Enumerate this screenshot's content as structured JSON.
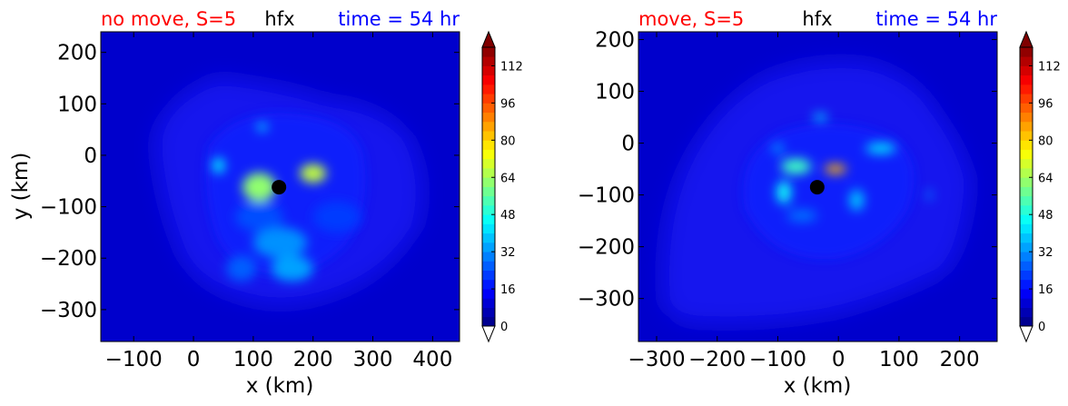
{
  "chart_data": [
    {
      "type": "heatmap",
      "panel": "left",
      "title_left": "no move, S=5",
      "title_center": "hfx",
      "title_right": "time = 54 hr",
      "title_left_color": "#ff0000",
      "title_center_color": "#000000",
      "title_right_color": "#0000ff",
      "xlabel": "x (km)",
      "ylabel": "y (km)",
      "xlim": [
        -155,
        445
      ],
      "ylim": [
        -362,
        240
      ],
      "xticks": [
        -100,
        0,
        100,
        200,
        300,
        400
      ],
      "xtick_labels": [
        "−100",
        "0",
        "100",
        "200",
        "300",
        "400"
      ],
      "yticks": [
        200,
        100,
        0,
        -100,
        -200,
        -300
      ],
      "ytick_labels": [
        "200",
        "100",
        "0",
        "−100",
        "−200",
        "−300"
      ],
      "storm_center": {
        "x": 143,
        "y": -62
      },
      "background_value": 4,
      "domain_value": 8,
      "blobs": [
        {
          "x": 110,
          "y": -62,
          "rx": 28,
          "ry": 28,
          "value": 62
        },
        {
          "x": 200,
          "y": -35,
          "rx": 22,
          "ry": 18,
          "value": 68
        },
        {
          "x": 42,
          "y": -20,
          "rx": 10,
          "ry": 15,
          "value": 44
        },
        {
          "x": 115,
          "y": 55,
          "rx": 9,
          "ry": 7,
          "value": 44
        },
        {
          "x": 145,
          "y": -170,
          "rx": 45,
          "ry": 30,
          "value": 32
        },
        {
          "x": 165,
          "y": -220,
          "rx": 35,
          "ry": 25,
          "value": 34
        },
        {
          "x": 80,
          "y": -220,
          "rx": 25,
          "ry": 25,
          "value": 26
        },
        {
          "x": 240,
          "y": -120,
          "rx": 40,
          "ry": 30,
          "value": 22
        },
        {
          "x": 110,
          "y": -120,
          "rx": 40,
          "ry": 28,
          "value": 24
        }
      ]
    },
    {
      "type": "heatmap",
      "panel": "right",
      "title_left": "move, S=5",
      "title_center": "hfx",
      "title_right": "time = 54 hr",
      "title_left_color": "#ff0000",
      "title_center_color": "#000000",
      "title_right_color": "#0000ff",
      "xlabel": "x (km)",
      "ylabel": "",
      "xlim": [
        -330,
        262
      ],
      "ylim": [
        -383,
        215
      ],
      "xticks": [
        -300,
        -200,
        -100,
        0,
        100,
        200
      ],
      "xtick_labels": [
        "−300",
        "−200",
        "−100",
        "0",
        "100",
        "200"
      ],
      "yticks": [
        200,
        100,
        0,
        -100,
        -200,
        -300
      ],
      "ytick_labels": [
        "200",
        "100",
        "0",
        "−100",
        "−200",
        "−300"
      ],
      "storm_center": {
        "x": -35,
        "y": -85
      },
      "background_value": 4,
      "domain_value": 8,
      "blobs": [
        {
          "x": -5,
          "y": -50,
          "rx": 18,
          "ry": 9,
          "value": 84
        },
        {
          "x": -70,
          "y": -45,
          "rx": 25,
          "ry": 15,
          "value": 52
        },
        {
          "x": -90,
          "y": -95,
          "rx": 12,
          "ry": 22,
          "value": 46
        },
        {
          "x": 70,
          "y": -10,
          "rx": 25,
          "ry": 10,
          "value": 42
        },
        {
          "x": -30,
          "y": 50,
          "rx": 12,
          "ry": 7,
          "value": 40
        },
        {
          "x": 30,
          "y": -110,
          "rx": 12,
          "ry": 20,
          "value": 38
        },
        {
          "x": -100,
          "y": -10,
          "rx": 10,
          "ry": 10,
          "value": 32
        },
        {
          "x": -60,
          "y": -140,
          "rx": 25,
          "ry": 12,
          "value": 28
        },
        {
          "x": 150,
          "y": -100,
          "rx": 5,
          "ry": 10,
          "value": 30
        }
      ]
    }
  ],
  "colorbar": {
    "ticks": [
      0,
      16,
      32,
      48,
      64,
      80,
      96,
      112
    ],
    "levels_min": 0,
    "levels_max": 120,
    "level_step": 4,
    "extend": "both",
    "colormap": "jet",
    "under_color": "#ffffff",
    "over_color": "#800000"
  }
}
